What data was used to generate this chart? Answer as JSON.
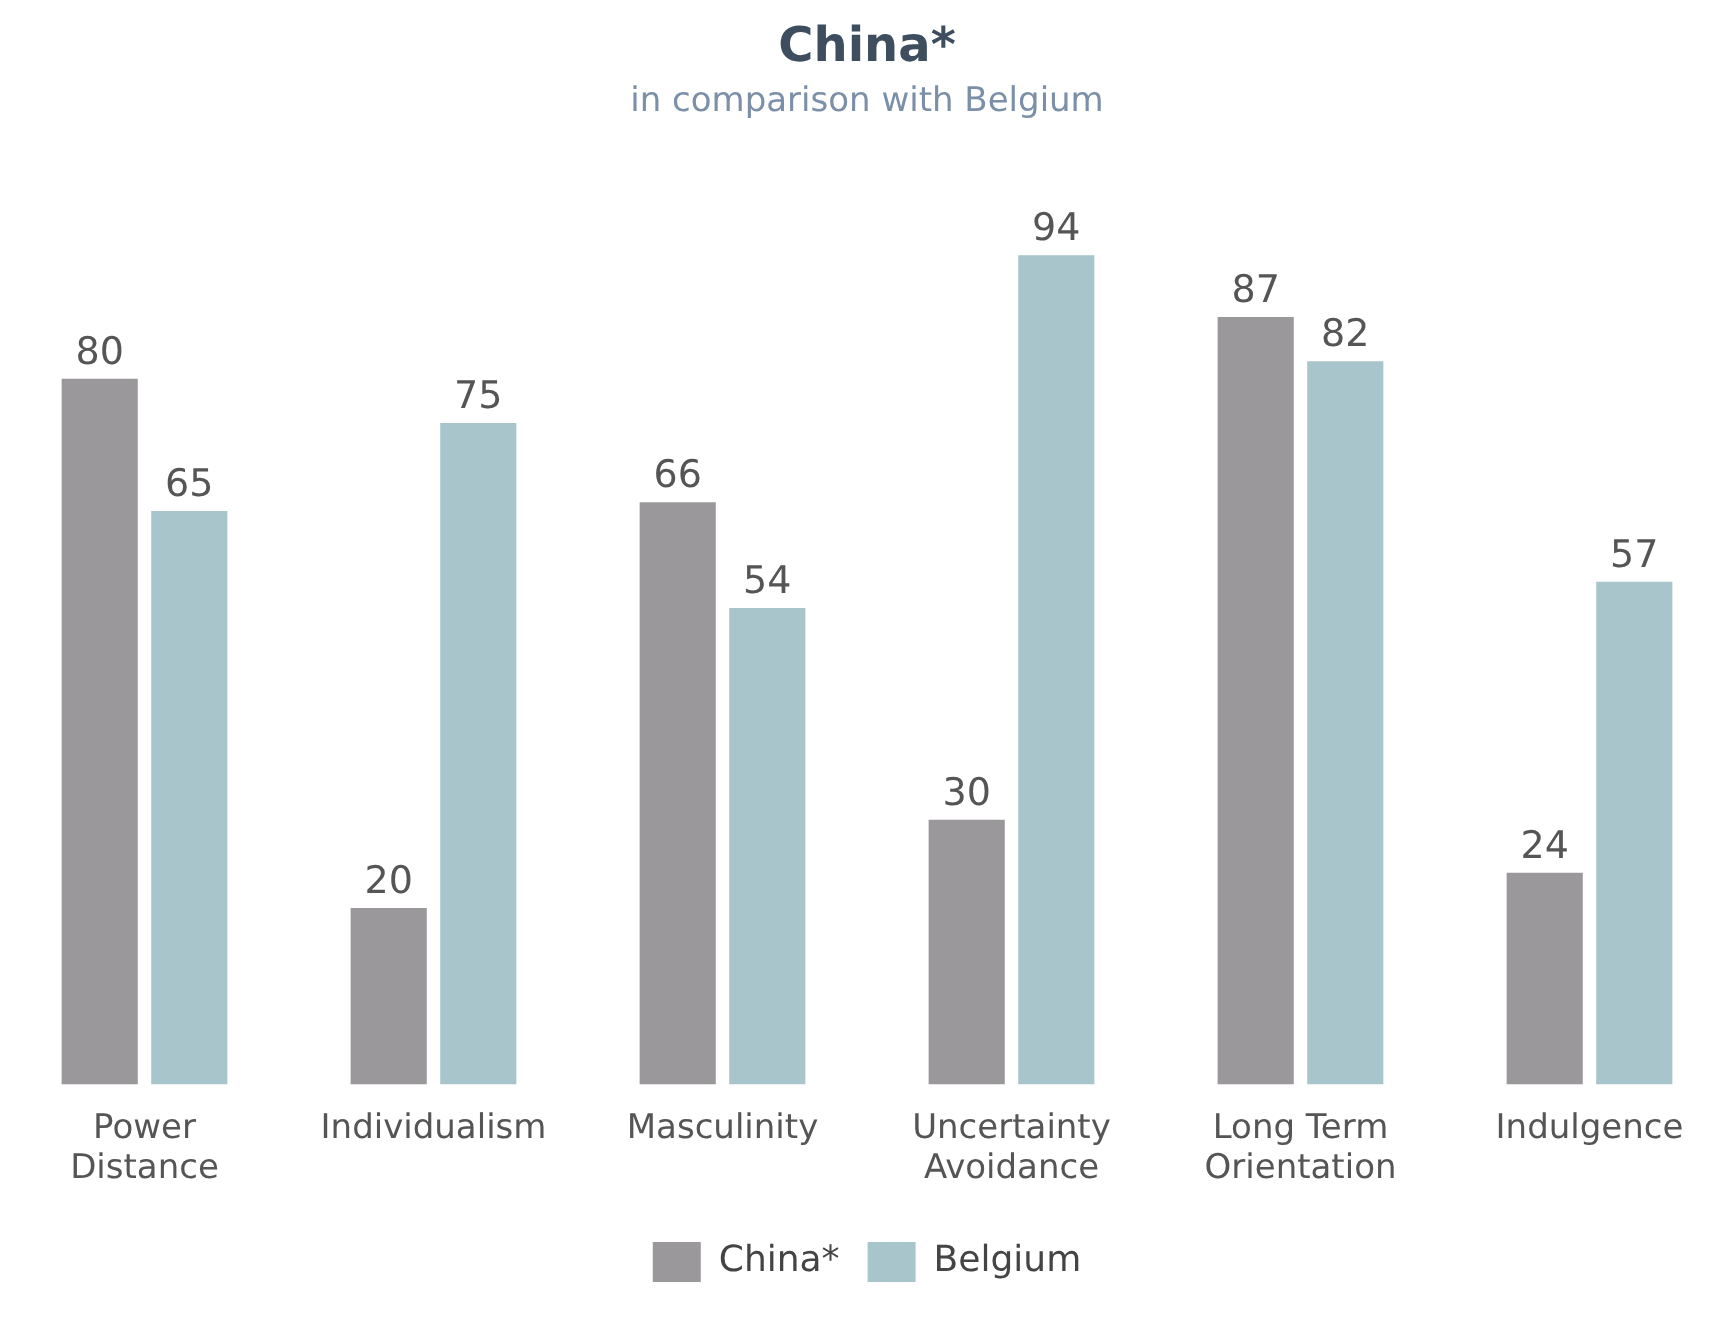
{
  "chart_data": {
    "type": "bar",
    "title": "China*",
    "subtitle": "in comparison with Belgium",
    "categories": [
      "Power Distance",
      "Individualism",
      "Masculinity",
      "Uncertainty Avoidance",
      "Long Term Orientation",
      "Indulgence"
    ],
    "series": [
      {
        "name": "China*",
        "color": "#9a989a",
        "values": [
          80,
          20,
          66,
          30,
          87,
          24
        ]
      },
      {
        "name": "Belgium",
        "color": "#a9c5cc",
        "values": [
          65,
          75,
          54,
          94,
          82,
          57
        ]
      }
    ],
    "data_labels": true,
    "legend": "bottom",
    "grid": false
  }
}
